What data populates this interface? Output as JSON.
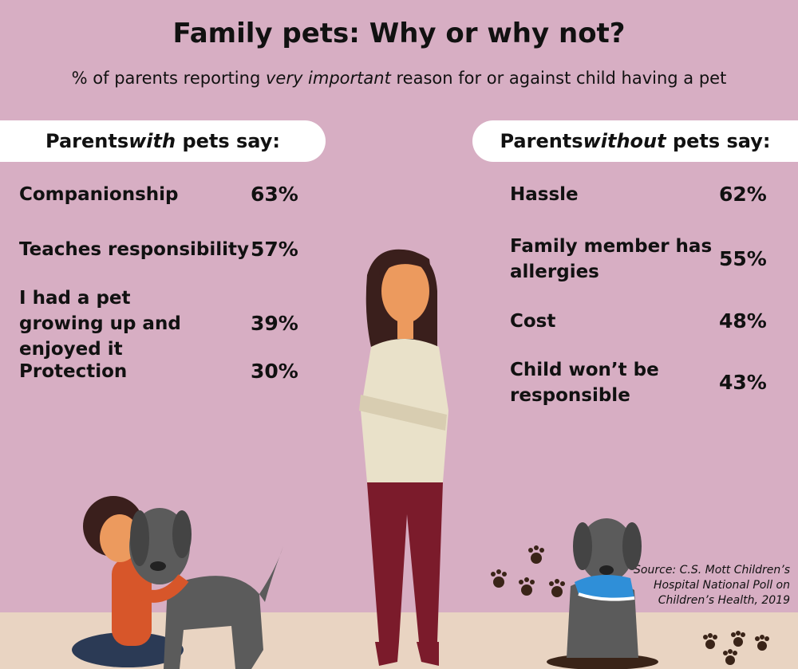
{
  "title": "Family pets: Why or why not?",
  "subtitle_pre": "% of parents reporting ",
  "subtitle_em": "very important",
  "subtitle_post": " reason for or against child having a pet",
  "with_pets": {
    "header_pre": "Parents ",
    "header_em": "with",
    "header_post": " pets say:",
    "items": [
      {
        "label": "Companionship",
        "value": "63%"
      },
      {
        "label": "Teaches responsibility",
        "value": "57%"
      },
      {
        "label": "I had a pet growing up and enjoyed it",
        "value": "39%"
      },
      {
        "label": "Protection",
        "value": "30%"
      }
    ]
  },
  "without_pets": {
    "header_pre": "Parents ",
    "header_em": "without",
    "header_post": " pets say:",
    "items": [
      {
        "label": "Hassle",
        "value": "62%"
      },
      {
        "label": "Family member has allergies",
        "value": "55%"
      },
      {
        "label": "Cost",
        "value": "48%"
      },
      {
        "label": "Child won’t be responsible",
        "value": "43%"
      }
    ]
  },
  "source": "Source: C.S. Mott Children’s Hospital National Poll on Children’s Health, 2019",
  "colors": {
    "background": "#d7aec3",
    "floor": "#e9d4c2",
    "pill": "#ffffff"
  }
}
